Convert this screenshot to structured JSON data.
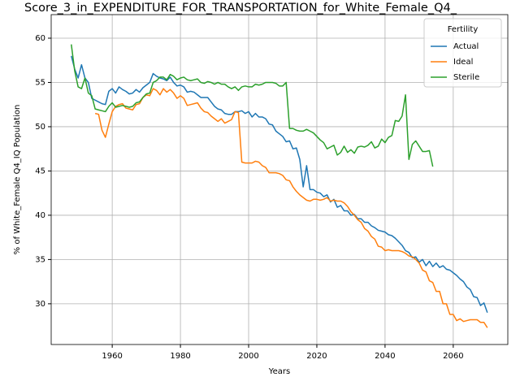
{
  "chart_data": {
    "type": "line",
    "title": "Score_3_in_EXPENDITURE_FOR_TRANSPORTATION_for_White_Female_Q4_",
    "xlabel": "Years",
    "ylabel": "% of White_Female Q4_IQ Population",
    "legend_title": "Fertility",
    "legend": "upper right",
    "grid": true,
    "xlim": [
      1942.1,
      2076
    ],
    "ylim": [
      25.4,
      62.66
    ],
    "xticks": [
      1960,
      1980,
      2000,
      2020,
      2040,
      2060
    ],
    "yticks": [
      30,
      35,
      40,
      45,
      50,
      55,
      60
    ],
    "x_start": 1948,
    "series": [
      {
        "name": "Actual",
        "color": "#1f77b4",
        "values": [
          58,
          56.5,
          55.5,
          57,
          55.5,
          55,
          53.2,
          53,
          52.8,
          52.6,
          52.5,
          54,
          54.3,
          53.8,
          54.5,
          54.2,
          54,
          53.7,
          53.8,
          54.2,
          53.9,
          54.4,
          54.7,
          55,
          56,
          55.7,
          55.5,
          55.4,
          55.2,
          55.6,
          55,
          54.6,
          54.7,
          54.5,
          53.9,
          54,
          53.9,
          53.6,
          53.3,
          53.3,
          53.3,
          52.8,
          52.3,
          52,
          51.9,
          51.5,
          51.4,
          51.4,
          51.7,
          51.7,
          51.8,
          51.5,
          51.7,
          51.1,
          51.5,
          51.1,
          51.1,
          50.9,
          50.3,
          50.2,
          49.5,
          49.2,
          48.9,
          48.3,
          48.4,
          47.5,
          47.6,
          46.3,
          43.2,
          45.6,
          42.9,
          42.9,
          42.6,
          42.5,
          42.1,
          42.3,
          41.5,
          41.8,
          40.9,
          41.1,
          40.5,
          40.5,
          40,
          40.1,
          39.6,
          39.6,
          39.2,
          39.2,
          38.8,
          38.6,
          38.3,
          38.2,
          38.1,
          37.8,
          37.7,
          37.4,
          37,
          36.6,
          36,
          35.8,
          35.2,
          35.3,
          34.7,
          35,
          34.3,
          34.8,
          34.2,
          34.6,
          34.1,
          34.3,
          33.9,
          33.8,
          33.5,
          33.2,
          32.8,
          32.5,
          31.9,
          31.6,
          30.8,
          30.7,
          29.8,
          30.1,
          29
        ]
      },
      {
        "name": "Ideal",
        "color": "#ff7f0e",
        "values": [
          null,
          null,
          null,
          null,
          null,
          null,
          null,
          51.5,
          51.4,
          49.6,
          48.8,
          50.3,
          51.7,
          52.3,
          52.5,
          52.6,
          52.1,
          52,
          51.9,
          52.5,
          52.6,
          53.3,
          53.6,
          53.5,
          54.3,
          54.1,
          53.6,
          54.3,
          53.9,
          54.2,
          53.8,
          53.2,
          53.5,
          53.2,
          52.4,
          52.5,
          52.6,
          52.7,
          52.1,
          51.7,
          51.6,
          51.2,
          50.9,
          50.6,
          50.9,
          50.4,
          50.6,
          50.8,
          51.7,
          51.6,
          46,
          45.9,
          45.9,
          45.9,
          46.1,
          46,
          45.6,
          45.4,
          44.8,
          44.8,
          44.8,
          44.7,
          44.5,
          44,
          43.9,
          43.2,
          42.7,
          42.3,
          42,
          41.7,
          41.6,
          41.8,
          41.8,
          41.7,
          41.8,
          42,
          41.6,
          41.7,
          41.6,
          41.6,
          41.4,
          41,
          40.4,
          40,
          39.5,
          39.2,
          38.5,
          38.2,
          37.6,
          37.3,
          36.5,
          36.4,
          36,
          36.1,
          36,
          36,
          36,
          35.9,
          35.7,
          35.4,
          35.3,
          35,
          34.6,
          33.8,
          33.6,
          32.6,
          32.4,
          31.4,
          31.4,
          30,
          30,
          28.8,
          28.8,
          28.1,
          28.3,
          28,
          28.1,
          28.2,
          28.2,
          28.2,
          27.9,
          27.9,
          27.3
        ]
      },
      {
        "name": "Sterile",
        "color": "#2ca02c",
        "values": [
          59.3,
          56.3,
          54.5,
          54.3,
          55.5,
          53.8,
          53.5,
          52,
          51.9,
          51.8,
          51.7,
          52.3,
          52.7,
          52.2,
          52.3,
          52.4,
          52.3,
          52.2,
          52.3,
          52.7,
          52.8,
          53.3,
          53.7,
          53.8,
          55,
          55.2,
          55.6,
          55.6,
          55.3,
          55.9,
          55.7,
          55.3,
          55.5,
          55.6,
          55.3,
          55.2,
          55.3,
          55.4,
          55,
          54.9,
          55.1,
          55,
          54.8,
          55,
          54.8,
          54.8,
          54.5,
          54.3,
          54.5,
          54.1,
          54.5,
          54.6,
          54.5,
          54.5,
          54.8,
          54.7,
          54.8,
          55,
          55,
          55,
          54.9,
          54.6,
          54.6,
          55,
          49.8,
          49.8,
          49.6,
          49.5,
          49.5,
          49.7,
          49.5,
          49.3,
          48.9,
          48.5,
          48.2,
          47.5,
          47.7,
          47.9,
          46.8,
          47.1,
          47.8,
          47.1,
          47.4,
          47,
          47.7,
          47.8,
          47.7,
          47.9,
          48.3,
          47.6,
          47.8,
          48.6,
          48.2,
          48.8,
          49,
          50.7,
          50.6,
          51.2,
          53.6,
          46.3,
          48,
          48.4,
          47.8,
          47.2,
          47.2,
          47.3,
          45.5,
          null,
          null,
          null,
          null,
          null,
          null,
          null,
          null,
          null,
          null,
          null,
          null,
          null,
          null,
          null,
          null
        ]
      }
    ]
  }
}
